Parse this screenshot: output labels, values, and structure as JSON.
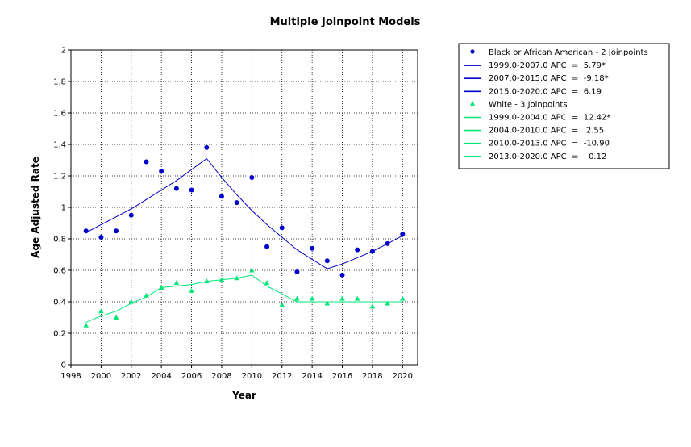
{
  "chart_data": {
    "type": "scatter",
    "title": "Multiple Joinpoint Models",
    "xlabel": "Year",
    "ylabel": "Age Adjusted Rate",
    "xlim": [
      1998,
      2021
    ],
    "ylim": [
      0,
      2
    ],
    "x_ticks": [
      "1998",
      "2000",
      "2002",
      "2004",
      "2006",
      "2008",
      "2010",
      "2012",
      "2014",
      "2016",
      "2018",
      "2020"
    ],
    "y_ticks": [
      "0",
      "0.2",
      "0.4",
      "0.6",
      "0.8",
      "1",
      "1.2",
      "1.4",
      "1.6",
      "1.8",
      "2"
    ],
    "grid": true,
    "legend_position": "right",
    "series": [
      {
        "name": "Black or African American - 2 Joinpoints",
        "color": "#0000cc",
        "marker": "circle",
        "x": [
          1999,
          2000,
          2001,
          2002,
          2003,
          2004,
          2005,
          2006,
          2007,
          2008,
          2009,
          2010,
          2011,
          2012,
          2013,
          2014,
          2015,
          2016,
          2017,
          2018,
          2019,
          2020
        ],
        "y": [
          0.85,
          0.81,
          0.85,
          0.95,
          1.29,
          1.23,
          1.12,
          1.11,
          1.38,
          1.07,
          1.03,
          1.19,
          0.75,
          0.87,
          0.59,
          0.74,
          0.66,
          0.57,
          0.73,
          0.72,
          0.77,
          0.83
        ],
        "fit_x": [
          1999,
          2000,
          2001,
          2002,
          2003,
          2004,
          2005,
          2006,
          2007,
          2008,
          2009,
          2010,
          2011,
          2012,
          2013,
          2014,
          2015,
          2016,
          2017,
          2018,
          2019,
          2020
        ],
        "fit_y": [
          0.84,
          0.89,
          0.94,
          0.99,
          1.05,
          1.11,
          1.17,
          1.24,
          1.31,
          1.19,
          1.08,
          0.98,
          0.89,
          0.81,
          0.73,
          0.67,
          0.61,
          0.64,
          0.68,
          0.72,
          0.77,
          0.82
        ],
        "segments": [
          "1999.0-2007.0 APC  =  5.79*",
          "2007.0-2015.0 APC  =  -9.18*",
          "2015.0-2020.0 APC  =  6.19"
        ]
      },
      {
        "name": "White - 3 Joinpoints",
        "color": "#00e676",
        "marker": "triangle",
        "x": [
          1999,
          2000,
          2001,
          2002,
          2003,
          2004,
          2005,
          2006,
          2007,
          2008,
          2009,
          2010,
          2011,
          2012,
          2013,
          2014,
          2015,
          2016,
          2017,
          2018,
          2019,
          2020
        ],
        "y": [
          0.25,
          0.34,
          0.3,
          0.4,
          0.44,
          0.49,
          0.52,
          0.47,
          0.53,
          0.54,
          0.55,
          0.6,
          0.52,
          0.38,
          0.42,
          0.42,
          0.39,
          0.42,
          0.42,
          0.37,
          0.39,
          0.42
        ],
        "fit_x": [
          1999,
          2000,
          2001,
          2002,
          2003,
          2004,
          2005,
          2006,
          2007,
          2008,
          2009,
          2010,
          2011,
          2012,
          2013,
          2014,
          2015,
          2016,
          2017,
          2018,
          2019,
          2020
        ],
        "fit_y": [
          0.27,
          0.31,
          0.34,
          0.39,
          0.43,
          0.49,
          0.5,
          0.51,
          0.53,
          0.54,
          0.55,
          0.57,
          0.5,
          0.45,
          0.4,
          0.4,
          0.4,
          0.4,
          0.4,
          0.4,
          0.4,
          0.4
        ],
        "segments": [
          "1999.0-2004.0 APC  =  12.42*",
          "2004.0-2010.0 APC  =   2.55",
          "2010.0-2013.0 APC  =  -10.90",
          "2013.0-2020.0 APC  =    0.12"
        ]
      }
    ]
  }
}
